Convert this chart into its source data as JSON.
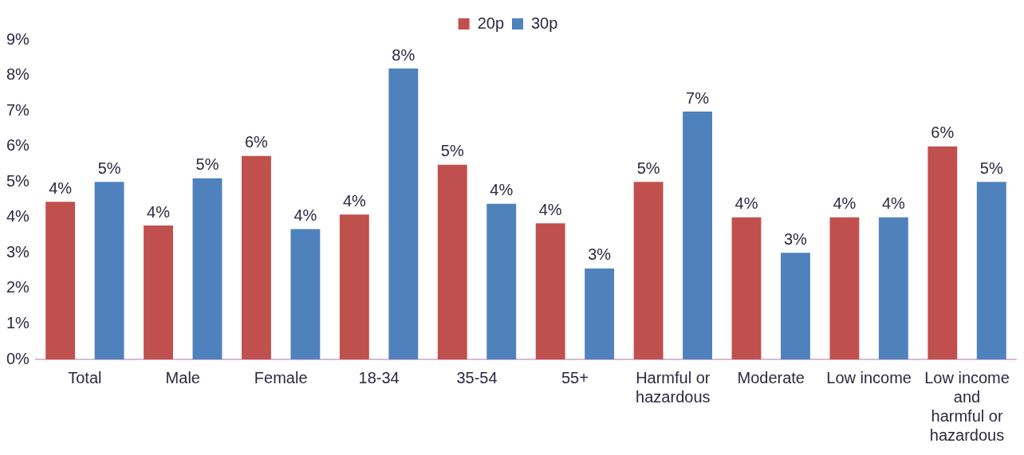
{
  "chart_data": {
    "type": "bar",
    "categories": [
      "Total",
      "Male",
      "Female",
      "18-34",
      "35-54",
      "55+",
      "Harmful or hazardous",
      "Moderate",
      "Low income",
      "Low income and harmful or hazardous"
    ],
    "series": [
      {
        "name": "20p",
        "color": "#c0504d",
        "values": [
          4.44,
          3.77,
          5.73,
          4.08,
          5.48,
          3.83,
          5.0,
          4.0,
          4.0,
          6.0
        ],
        "value_labels": [
          "4%",
          "4%",
          "6%",
          "4%",
          "5%",
          "4%",
          "5%",
          "4%",
          "4%",
          "6%"
        ]
      },
      {
        "name": "30p",
        "color": "#4f81bd",
        "values": [
          5.0,
          5.1,
          3.67,
          8.19,
          4.38,
          2.56,
          6.98,
          3.0,
          4.0,
          5.0
        ],
        "value_labels": [
          "5%",
          "5%",
          "4%",
          "8%",
          "4%",
          "3%",
          "7%",
          "3%",
          "4%",
          "5%"
        ]
      }
    ],
    "ylim": [
      0,
      9
    ],
    "yticks": [
      {
        "value": 0,
        "label": "0%"
      },
      {
        "value": 1,
        "label": "1%"
      },
      {
        "value": 2,
        "label": "2%"
      },
      {
        "value": 3,
        "label": "3%"
      },
      {
        "value": 4,
        "label": "4%"
      },
      {
        "value": 5,
        "label": "5%"
      },
      {
        "value": 6,
        "label": "6%"
      },
      {
        "value": 7,
        "label": "7%"
      },
      {
        "value": 8,
        "label": "8%"
      },
      {
        "value": 9,
        "label": "9%"
      }
    ],
    "grid": false,
    "legend": "top"
  }
}
